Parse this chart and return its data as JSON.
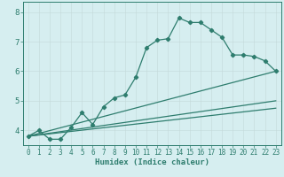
{
  "title": "",
  "xlabel": "Humidex (Indice chaleur)",
  "bg_color": "#d6eef0",
  "grid_color": "#c4d9da",
  "line_color": "#2e7d6e",
  "xlim": [
    -0.5,
    23.5
  ],
  "ylim": [
    3.5,
    8.35
  ],
  "xticks": [
    0,
    1,
    2,
    3,
    4,
    5,
    6,
    7,
    8,
    9,
    10,
    11,
    12,
    13,
    14,
    15,
    16,
    17,
    18,
    19,
    20,
    21,
    22,
    23
  ],
  "yticks": [
    4,
    5,
    6,
    7,
    8
  ],
  "curve1_x": [
    0,
    1,
    2,
    3,
    4,
    5,
    6,
    7,
    8,
    9,
    10,
    11,
    12,
    13,
    14,
    15,
    16,
    17,
    18,
    19,
    20,
    21,
    22,
    23
  ],
  "curve1_y": [
    3.8,
    4.0,
    3.7,
    3.7,
    4.1,
    4.6,
    4.2,
    4.8,
    5.1,
    5.2,
    5.8,
    6.8,
    7.05,
    7.1,
    7.8,
    7.65,
    7.65,
    7.4,
    7.15,
    6.55,
    6.55,
    6.5,
    6.35,
    6.0
  ],
  "line1_x": [
    0,
    23
  ],
  "line1_y": [
    3.8,
    6.0
  ],
  "line2_x": [
    0,
    23
  ],
  "line2_y": [
    3.8,
    4.75
  ],
  "line3_x": [
    0,
    23
  ],
  "line3_y": [
    3.8,
    5.0
  ]
}
